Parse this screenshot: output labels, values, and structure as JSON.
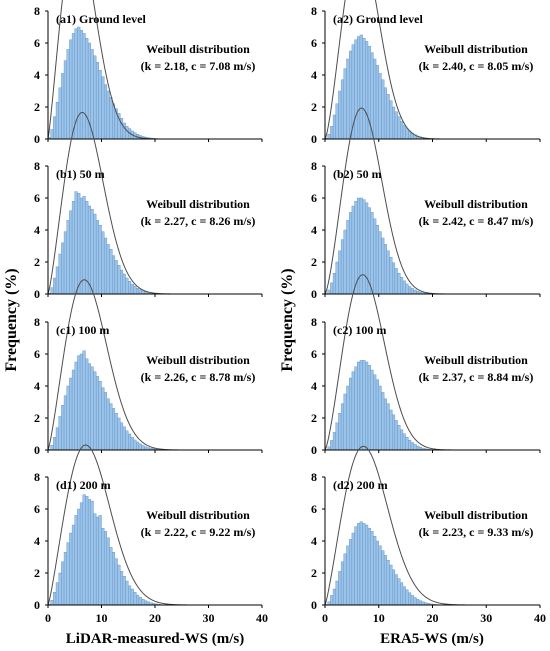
{
  "figure": {
    "ylabel": "Frequency (%)",
    "xlabel_left": "LiDAR-measured-WS (m/s)",
    "xlabel_right": "ERA5-WS (m/s)"
  },
  "colors": {
    "bar_fill": "#9cc3e8",
    "bar_stroke": "#5b8fc7",
    "curve": "#4d4d4d",
    "axis": "#000000"
  },
  "chart_data": [
    {
      "type": "bar",
      "panel_label": "(a1) Ground level",
      "dist_title": "Weibull distribution",
      "dist_params": "(k = 2.18, c = 7.08 m/s)",
      "xlim": [
        0,
        40
      ],
      "ylim": [
        0,
        8
      ],
      "xticks": [
        "0",
        "10",
        "20",
        "30",
        "40"
      ],
      "yticks": [
        "0",
        "2",
        "4",
        "6",
        "8"
      ],
      "weibull": {
        "k": 2.18,
        "c": 7.08
      },
      "bin_width": 0.5,
      "values": [
        0.1,
        0.6,
        1.4,
        2.3,
        3.2,
        4.1,
        4.9,
        5.6,
        6.2,
        6.6,
        6.9,
        7.0,
        6.8,
        6.6,
        6.3,
        6.0,
        5.6,
        5.2,
        4.8,
        4.3,
        3.9,
        3.4,
        3.0,
        2.6,
        2.2,
        1.9,
        1.6,
        1.3,
        1.0,
        0.8,
        0.65,
        0.5,
        0.4,
        0.3,
        0.22,
        0.16,
        0.12,
        0.09,
        0.06,
        0.04
      ]
    },
    {
      "type": "bar",
      "panel_label": "(a2) Ground level",
      "dist_title": "Weibull distribution",
      "dist_params": "(k = 2.40, c = 8.05 m/s)",
      "xlim": [
        0,
        40
      ],
      "ylim": [
        0,
        8
      ],
      "xticks": [
        "0",
        "10",
        "20",
        "30",
        "40"
      ],
      "yticks": [
        "0",
        "2",
        "4",
        "6",
        "8"
      ],
      "weibull": {
        "k": 2.4,
        "c": 8.05
      },
      "bin_width": 0.5,
      "values": [
        0.05,
        0.3,
        0.8,
        1.5,
        2.2,
        3.0,
        3.7,
        4.4,
        5.0,
        5.5,
        5.9,
        6.2,
        6.4,
        6.5,
        6.3,
        6.1,
        5.8,
        5.4,
        5.0,
        4.6,
        4.1,
        3.7,
        3.2,
        2.8,
        2.4,
        2.0,
        1.7,
        1.4,
        1.1,
        0.85,
        0.65,
        0.5,
        0.37,
        0.27,
        0.19,
        0.13,
        0.09,
        0.06,
        0.04,
        0.02
      ]
    },
    {
      "type": "bar",
      "panel_label": "(b1) 50 m",
      "dist_title": "Weibull distribution",
      "dist_params": "(k = 2.27, c = 8.26 m/s)",
      "xlim": [
        0,
        40
      ],
      "ylim": [
        0,
        8
      ],
      "xticks": [
        "0",
        "10",
        "20",
        "30",
        "40"
      ],
      "yticks": [
        "0",
        "2",
        "4",
        "6",
        "8"
      ],
      "weibull": {
        "k": 2.27,
        "c": 8.26
      },
      "bin_width": 0.5,
      "values": [
        0.05,
        0.4,
        1.0,
        1.7,
        2.5,
        3.2,
        3.9,
        4.6,
        5.2,
        5.8,
        6.4,
        6.3,
        6.0,
        6.1,
        5.8,
        5.5,
        5.3,
        5.0,
        4.6,
        4.3,
        3.9,
        3.5,
        3.1,
        2.8,
        2.4,
        2.1,
        1.8,
        1.5,
        1.25,
        1.0,
        0.8,
        0.62,
        0.48,
        0.36,
        0.27,
        0.2,
        0.14,
        0.1,
        0.07,
        0.05,
        0.03,
        0.02
      ]
    },
    {
      "type": "bar",
      "panel_label": "(b2) 50 m",
      "dist_title": "Weibull distribution",
      "dist_params": "(k = 2.42, c = 8.47 m/s)",
      "xlim": [
        0,
        40
      ],
      "ylim": [
        0,
        8
      ],
      "xticks": [
        "0",
        "10",
        "20",
        "30",
        "40"
      ],
      "yticks": [
        "0",
        "2",
        "4",
        "6",
        "8"
      ],
      "weibull": {
        "k": 2.42,
        "c": 8.47
      },
      "bin_width": 0.5,
      "values": [
        0.03,
        0.25,
        0.7,
        1.3,
        2.0,
        2.7,
        3.4,
        4.0,
        4.6,
        5.1,
        5.5,
        5.8,
        6.0,
        6.0,
        5.9,
        5.7,
        5.4,
        5.1,
        4.7,
        4.3,
        3.9,
        3.5,
        3.1,
        2.7,
        2.3,
        1.95,
        1.6,
        1.3,
        1.05,
        0.82,
        0.63,
        0.47,
        0.35,
        0.25,
        0.18,
        0.12,
        0.08,
        0.05,
        0.03,
        0.02
      ]
    },
    {
      "type": "bar",
      "panel_label": "(c1) 100 m",
      "dist_title": "Weibull distribution",
      "dist_params": "(k = 2.26, c = 8.78 m/s)",
      "xlim": [
        0,
        40
      ],
      "ylim": [
        0,
        8
      ],
      "xticks": [
        "0",
        "10",
        "20",
        "30",
        "40"
      ],
      "yticks": [
        "0",
        "2",
        "4",
        "6",
        "8"
      ],
      "weibull": {
        "k": 2.26,
        "c": 8.78
      },
      "bin_width": 0.5,
      "values": [
        0.04,
        0.3,
        0.8,
        1.4,
        2.1,
        2.8,
        3.4,
        4.0,
        4.5,
        5.0,
        5.5,
        5.9,
        6.0,
        6.2,
        5.7,
        5.4,
        5.2,
        4.9,
        4.6,
        4.3,
        3.9,
        3.6,
        3.2,
        2.9,
        2.6,
        2.3,
        2.0,
        1.7,
        1.45,
        1.2,
        1.0,
        0.8,
        0.63,
        0.5,
        0.38,
        0.28,
        0.21,
        0.15,
        0.11,
        0.08,
        0.05,
        0.03
      ]
    },
    {
      "type": "bar",
      "panel_label": "(c2) 100 m",
      "dist_title": "Weibull distribution",
      "dist_params": "(k = 2.37, c = 8.84 m/s)",
      "xlim": [
        0,
        40
      ],
      "ylim": [
        0,
        8
      ],
      "xticks": [
        "0",
        "10",
        "20",
        "30",
        "40"
      ],
      "yticks": [
        "0",
        "2",
        "4",
        "6",
        "8"
      ],
      "weibull": {
        "k": 2.37,
        "c": 8.84
      },
      "bin_width": 0.5,
      "values": [
        0.03,
        0.2,
        0.6,
        1.1,
        1.7,
        2.3,
        2.9,
        3.5,
        4.0,
        4.5,
        4.9,
        5.2,
        5.5,
        5.6,
        5.6,
        5.5,
        5.3,
        5.0,
        4.7,
        4.4,
        4.0,
        3.6,
        3.2,
        2.9,
        2.5,
        2.2,
        1.85,
        1.55,
        1.27,
        1.02,
        0.8,
        0.62,
        0.47,
        0.35,
        0.25,
        0.18,
        0.12,
        0.08,
        0.05,
        0.03
      ]
    },
    {
      "type": "bar",
      "panel_label": "(d1) 200 m",
      "dist_title": "Weibull distribution",
      "dist_params": "(k = 2.22, c = 9.22 m/s)",
      "xlim": [
        0,
        40
      ],
      "ylim": [
        0,
        8
      ],
      "xticks": [
        "0",
        "10",
        "20",
        "30",
        "40"
      ],
      "yticks": [
        "0",
        "2",
        "4",
        "6",
        "8"
      ],
      "weibull": {
        "k": 2.22,
        "c": 9.22
      },
      "bin_width": 0.5,
      "values": [
        0.05,
        0.3,
        0.8,
        1.4,
        2.0,
        2.7,
        3.3,
        3.9,
        4.5,
        5.0,
        5.6,
        6.0,
        6.4,
        6.9,
        6.8,
        6.6,
        6.5,
        5.7,
        5.5,
        5.6,
        4.8,
        4.6,
        4.2,
        3.6,
        3.3,
        2.9,
        2.5,
        2.1,
        1.8,
        1.5,
        1.2,
        1.0,
        0.8,
        0.62,
        0.48,
        0.36,
        0.27,
        0.2,
        0.14,
        0.1,
        0.07,
        0.05
      ]
    },
    {
      "type": "bar",
      "panel_label": "(d2) 200 m",
      "dist_title": "Weibull distribution",
      "dist_params": "(k = 2.23, c = 9.33 m/s)",
      "xlim": [
        0,
        40
      ],
      "ylim": [
        0,
        8
      ],
      "xticks": [
        "0",
        "10",
        "20",
        "30",
        "40"
      ],
      "yticks": [
        "0",
        "2",
        "4",
        "6",
        "8"
      ],
      "weibull": {
        "k": 2.23,
        "c": 9.33
      },
      "bin_width": 0.5,
      "values": [
        0.03,
        0.2,
        0.6,
        1.0,
        1.5,
        2.1,
        2.7,
        3.2,
        3.7,
        4.1,
        4.5,
        4.9,
        5.1,
        5.2,
        5.1,
        5.0,
        4.8,
        4.6,
        4.3,
        4.0,
        3.7,
        3.4,
        3.1,
        2.8,
        2.5,
        2.2,
        1.9,
        1.65,
        1.4,
        1.15,
        0.95,
        0.77,
        0.6,
        0.47,
        0.36,
        0.27,
        0.2,
        0.14,
        0.1,
        0.07,
        0.05,
        0.03
      ]
    }
  ]
}
